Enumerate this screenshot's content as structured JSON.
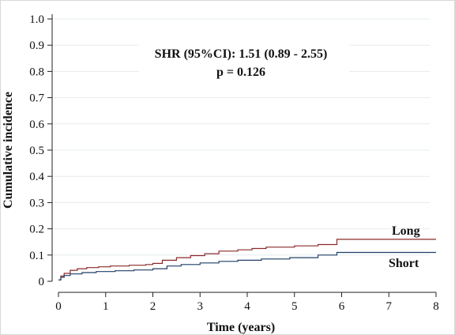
{
  "chart_data": {
    "type": "line",
    "xlabel": "Time (years)",
    "ylabel": "Cumulative incidence",
    "xlim": [
      0,
      8
    ],
    "ylim": [
      0,
      1.0
    ],
    "x_ticks": [
      "0",
      "1",
      "2",
      "3",
      "4",
      "5",
      "6",
      "7",
      "8"
    ],
    "y_ticks": [
      "0",
      "0.1",
      "0.2",
      "0.3",
      "0.4",
      "0.5",
      "0.6",
      "0.7",
      "0.8",
      "0.9",
      "1.0"
    ],
    "grid": "horizontal",
    "annotations": [
      "SHR (95%CI): 1.51 (0.89 - 2.55)",
      "p = 0.126"
    ],
    "series": [
      {
        "name": "Long",
        "color": "#8b2a2a",
        "step": true,
        "points": [
          [
            0,
            0.005
          ],
          [
            0.05,
            0.02
          ],
          [
            0.12,
            0.03
          ],
          [
            0.25,
            0.042
          ],
          [
            0.4,
            0.048
          ],
          [
            0.6,
            0.052
          ],
          [
            0.85,
            0.055
          ],
          [
            1.1,
            0.058
          ],
          [
            1.5,
            0.061
          ],
          [
            1.85,
            0.064
          ],
          [
            2.0,
            0.068
          ],
          [
            2.2,
            0.08
          ],
          [
            2.5,
            0.09
          ],
          [
            2.8,
            0.098
          ],
          [
            3.1,
            0.105
          ],
          [
            3.4,
            0.115
          ],
          [
            3.8,
            0.12
          ],
          [
            4.1,
            0.125
          ],
          [
            4.4,
            0.13
          ],
          [
            5.0,
            0.135
          ],
          [
            5.5,
            0.14
          ],
          [
            5.9,
            0.16
          ],
          [
            8.0,
            0.16
          ]
        ]
      },
      {
        "name": "Short",
        "color": "#1f3f66",
        "step": true,
        "points": [
          [
            0,
            0.005
          ],
          [
            0.05,
            0.015
          ],
          [
            0.12,
            0.022
          ],
          [
            0.25,
            0.028
          ],
          [
            0.5,
            0.033
          ],
          [
            0.8,
            0.037
          ],
          [
            1.2,
            0.04
          ],
          [
            1.6,
            0.043
          ],
          [
            2.0,
            0.048
          ],
          [
            2.3,
            0.058
          ],
          [
            2.6,
            0.064
          ],
          [
            3.0,
            0.07
          ],
          [
            3.4,
            0.076
          ],
          [
            3.8,
            0.08
          ],
          [
            4.3,
            0.085
          ],
          [
            4.9,
            0.09
          ],
          [
            5.5,
            0.1
          ],
          [
            5.9,
            0.11
          ],
          [
            8.0,
            0.11
          ]
        ]
      }
    ]
  }
}
